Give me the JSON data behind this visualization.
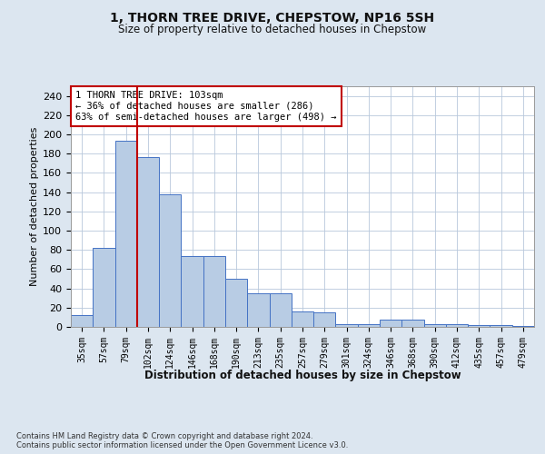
{
  "title": "1, THORN TREE DRIVE, CHEPSTOW, NP16 5SH",
  "subtitle": "Size of property relative to detached houses in Chepstow",
  "xlabel": "Distribution of detached houses by size in Chepstow",
  "ylabel": "Number of detached properties",
  "categories": [
    "35sqm",
    "57sqm",
    "79sqm",
    "102sqm",
    "124sqm",
    "146sqm",
    "168sqm",
    "190sqm",
    "213sqm",
    "235sqm",
    "257sqm",
    "279sqm",
    "301sqm",
    "324sqm",
    "346sqm",
    "368sqm",
    "390sqm",
    "412sqm",
    "435sqm",
    "457sqm",
    "479sqm"
  ],
  "values": [
    12,
    82,
    193,
    176,
    138,
    74,
    74,
    50,
    35,
    35,
    16,
    15,
    3,
    3,
    8,
    8,
    3,
    3,
    2,
    2,
    1
  ],
  "bar_color": "#b8cce4",
  "bar_edge_color": "#4472c4",
  "property_line_color": "#c00000",
  "annotation_text": "1 THORN TREE DRIVE: 103sqm\n← 36% of detached houses are smaller (286)\n63% of semi-detached houses are larger (498) →",
  "annotation_box_color": "#ffffff",
  "annotation_box_edge": "#c00000",
  "bg_color": "#dce6f0",
  "plot_bg_color": "#ffffff",
  "grid_color": "#b8c8dc",
  "footer": "Contains HM Land Registry data © Crown copyright and database right 2024.\nContains public sector information licensed under the Open Government Licence v3.0.",
  "ylim": [
    0,
    250
  ],
  "yticks": [
    0,
    20,
    40,
    60,
    80,
    100,
    120,
    140,
    160,
    180,
    200,
    220,
    240
  ]
}
